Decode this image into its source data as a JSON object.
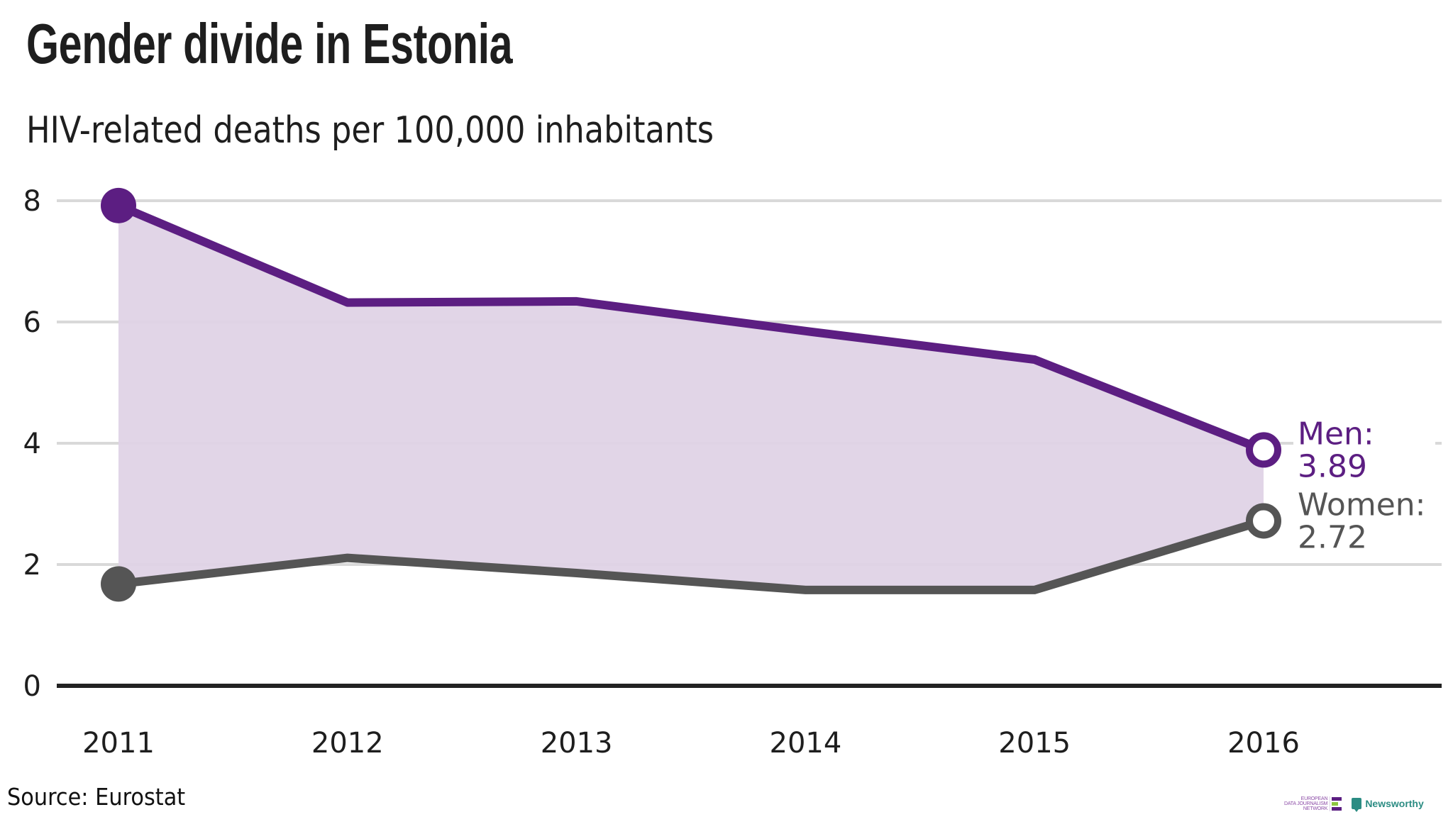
{
  "header": {
    "title": "Gender divide in Estonia",
    "subtitle": "HIV-related deaths per 100,000 inhabitants"
  },
  "footer": {
    "source": "Source: Eurostat",
    "logos": {
      "edjnet_lines": [
        "EUROPEAN",
        "DATA JOURNALISM",
        "NETWORK"
      ],
      "edjnet_bar_colors": [
        "#5c1e82",
        "#8dc63f",
        "#5c1e82"
      ],
      "newsworthy": "Newsworthy"
    }
  },
  "colors": {
    "men": "#5c1e82",
    "women": "#555555",
    "area_fill": "#dfd3e6",
    "gridline": "#d9d9d9",
    "baseline": "#222222",
    "newsworthy": "#2b8c83"
  },
  "chart_data": {
    "type": "line",
    "title": "Gender divide in Estonia",
    "subtitle": "HIV-related deaths per 100,000 inhabitants",
    "xlabel": "",
    "ylabel": "",
    "x": [
      "2011",
      "2012",
      "2013",
      "2014",
      "2015",
      "2016"
    ],
    "ylim": [
      0,
      8
    ],
    "yticks": [
      0,
      2,
      4,
      6,
      8
    ],
    "ytick_labels": [
      "0",
      "2",
      "4",
      "6",
      "8"
    ],
    "grid": true,
    "area_between_series": true,
    "series": [
      {
        "name": "Men",
        "values": [
          7.92,
          6.32,
          6.34,
          5.85,
          5.38,
          3.89
        ],
        "end_label": "Men:",
        "end_value_label": "3.89"
      },
      {
        "name": "Women",
        "values": [
          1.68,
          2.11,
          1.86,
          1.58,
          1.58,
          2.72
        ],
        "end_label": "Women:",
        "end_value_label": "2.72"
      }
    ],
    "legend": "direct-labels-right",
    "source": "Eurostat"
  }
}
